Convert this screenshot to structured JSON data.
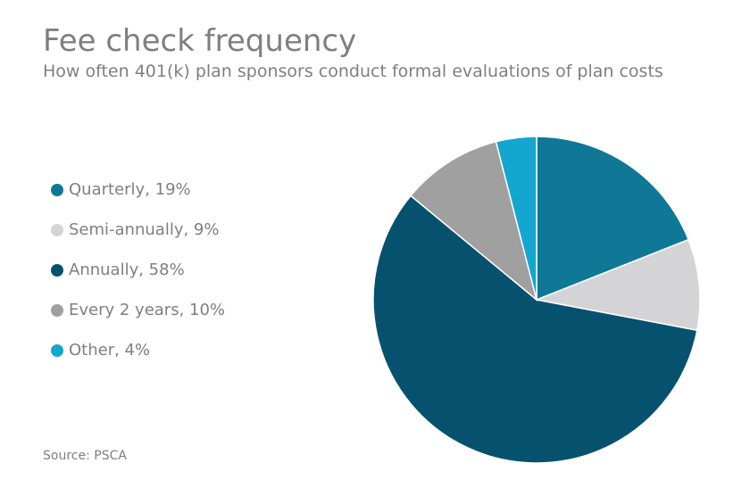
{
  "chart_data": {
    "type": "pie",
    "title": "Fee check frequency",
    "subtitle": "How often 401(k) plan sponsors conduct formal evaluations of plan costs",
    "series": [
      {
        "name": "Quarterly",
        "value": 19,
        "label": "Quarterly, 19%",
        "color": "#0f7896"
      },
      {
        "name": "Semi-annually",
        "value": 9,
        "label": "Semi-annually, 9%",
        "color": "#d4d3d6"
      },
      {
        "name": "Annually",
        "value": 58,
        "label": "Annually, 58%",
        "color": "#06526e"
      },
      {
        "name": "Every 2 years",
        "value": 10,
        "label": "Every 2 years, 10%",
        "color": "#a0a0a0"
      },
      {
        "name": "Other",
        "value": 4,
        "label": "Other, 4%",
        "color": "#13a6cf"
      }
    ],
    "legend_position": "left",
    "source": "Source: PSCA"
  }
}
